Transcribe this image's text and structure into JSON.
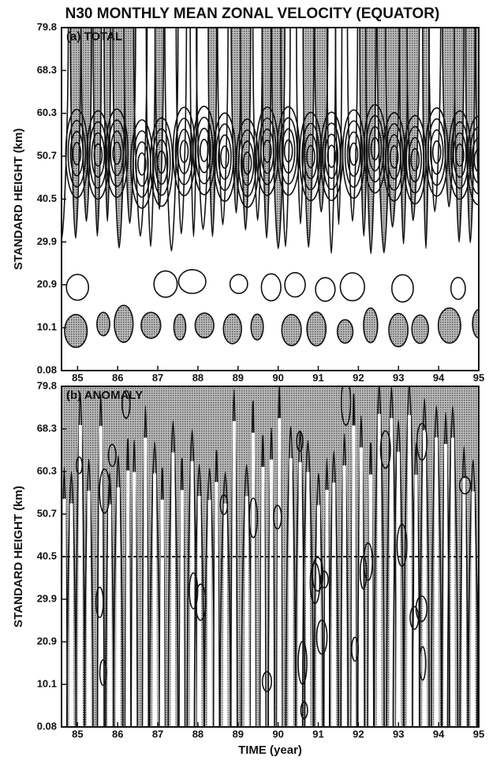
{
  "title": "N30 MONTHLY MEAN ZONAL VELOCITY (EQUATOR)",
  "chart_data": [
    {
      "type": "contour",
      "panel_label": "(a) TOTAL",
      "y_label": "STANDARD HEIGHT (km)",
      "y_categories": [
        0.08,
        10.1,
        20.9,
        29.9,
        40.5,
        50.7,
        60.3,
        68.3,
        79.8
      ],
      "xlim": [
        84.6,
        95
      ],
      "xticks": [
        85,
        86,
        87,
        88,
        89,
        90,
        91,
        92,
        93,
        94,
        95
      ]
    },
    {
      "type": "contour",
      "panel_label": "(b) ANOMALY",
      "y_label": "STANDARD HEIGHT (km)",
      "x_label": "TIME (year)",
      "y_categories": [
        0.08,
        10.1,
        20.9,
        29.9,
        40.5,
        50.7,
        60.3,
        68.3,
        79.8
      ],
      "xlim": [
        84.6,
        95
      ],
      "xticks": [
        85,
        86,
        87,
        88,
        89,
        90,
        91,
        92,
        93,
        94,
        95
      ]
    }
  ]
}
